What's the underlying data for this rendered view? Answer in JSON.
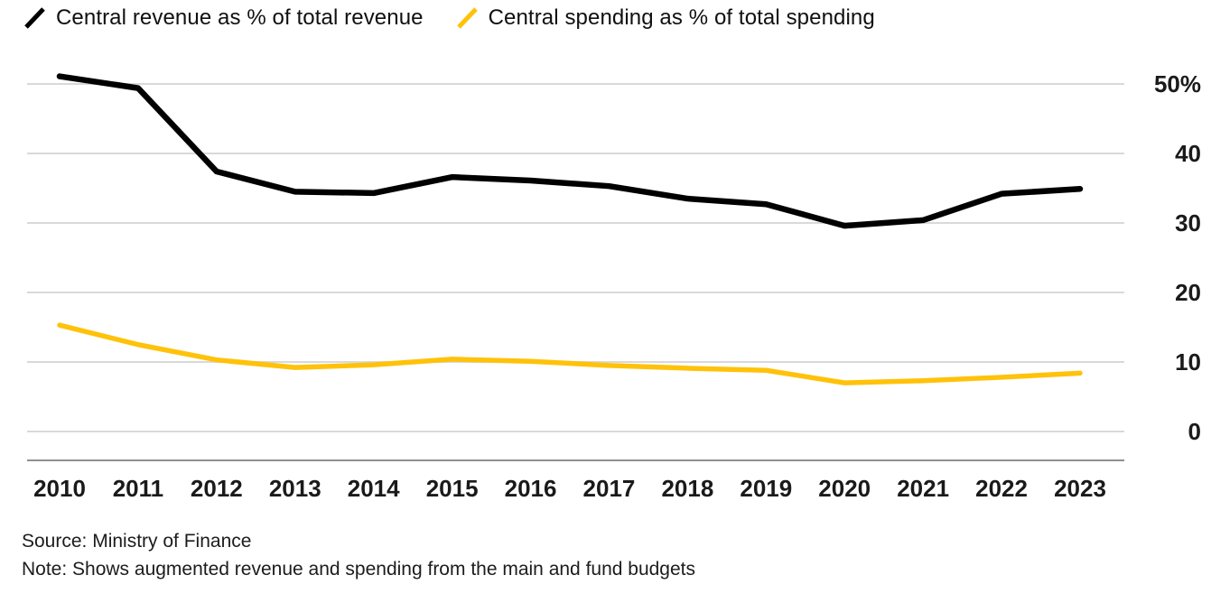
{
  "chart_data": {
    "type": "line",
    "title": "",
    "categories": [
      "2010",
      "2011",
      "2012",
      "2013",
      "2014",
      "2015",
      "2016",
      "2017",
      "2018",
      "2019",
      "2020",
      "2021",
      "2022",
      "2023"
    ],
    "series": [
      {
        "name": "Central revenue as % of total revenue",
        "color": "#000000",
        "values": [
          51.1,
          49.4,
          37.4,
          34.5,
          34.3,
          36.6,
          36.1,
          35.3,
          33.5,
          32.7,
          29.6,
          30.4,
          34.2,
          34.9
        ]
      },
      {
        "name": "Central spending as % of total spending",
        "color": "#FFC20A",
        "values": [
          15.3,
          12.5,
          10.3,
          9.2,
          9.6,
          10.4,
          10.1,
          9.5,
          9.1,
          8.8,
          7.0,
          7.3,
          7.8,
          8.4
        ]
      }
    ],
    "xlabel": "",
    "ylabel": "",
    "ylim": [
      0,
      50
    ],
    "yticks": [
      0,
      10,
      20,
      30,
      40,
      50
    ],
    "ytick_labels": [
      "0",
      "10",
      "20",
      "30",
      "40",
      "50%"
    ],
    "grid": "horizontal",
    "legend_position": "top-left"
  },
  "footer": {
    "source": "Source: Ministry of Finance",
    "note": "Note: Shows augmented revenue and spending from the main and fund budgets"
  },
  "colors": {
    "grid": "#d9d9d9",
    "axis": "#8f8f8f",
    "text": "#1a1a1a"
  }
}
